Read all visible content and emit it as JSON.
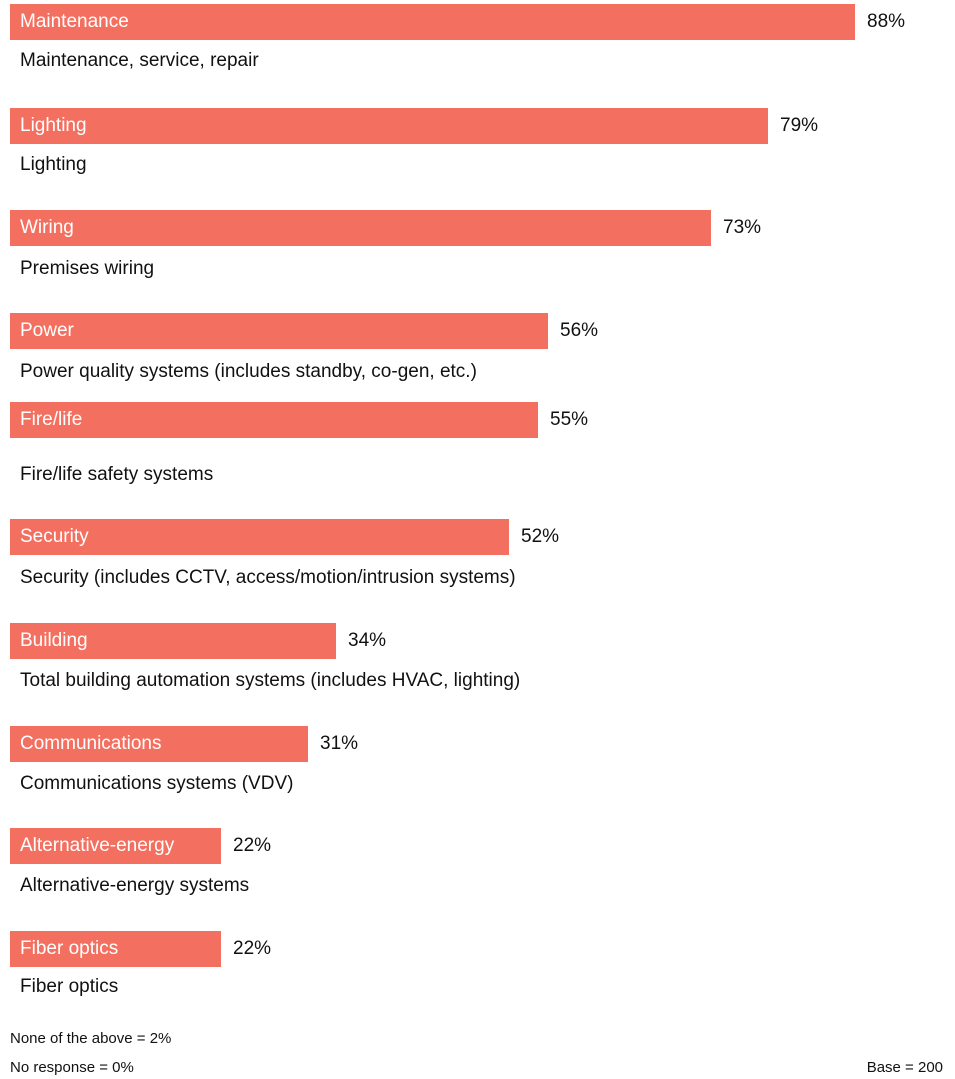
{
  "chart_data": {
    "type": "bar",
    "orientation": "horizontal",
    "bar_color": "#f37060",
    "categories": [
      "Maintenance",
      "Lighting",
      "Wiring",
      "Power",
      "Fire/life",
      "Security",
      "Building",
      "Communications",
      "Alternative-energy",
      "Fiber optics"
    ],
    "descriptions": [
      "Maintenance, service, repair",
      "Lighting",
      "Premises wiring",
      "Power quality systems (includes standby, co-gen, etc.)",
      "Fire/life safety systems",
      "Security (includes CCTV, access/motion/intrusion systems)",
      "Total building automation systems (includes HVAC, lighting)",
      "Communications systems (VDV)",
      "Alternative-energy systems",
      "Fiber optics"
    ],
    "values": [
      88,
      79,
      73,
      56,
      55,
      52,
      34,
      31,
      22,
      22
    ],
    "value_labels": [
      "88%",
      "79%",
      "73%",
      "56%",
      "55%",
      "52%",
      "34%",
      "31%",
      "22%",
      "22%"
    ],
    "xlim": [
      0,
      100
    ]
  },
  "footnotes": {
    "none_of_above": "None of the above = 2%",
    "no_response": "No response = 0%",
    "base": "Base = 200"
  }
}
